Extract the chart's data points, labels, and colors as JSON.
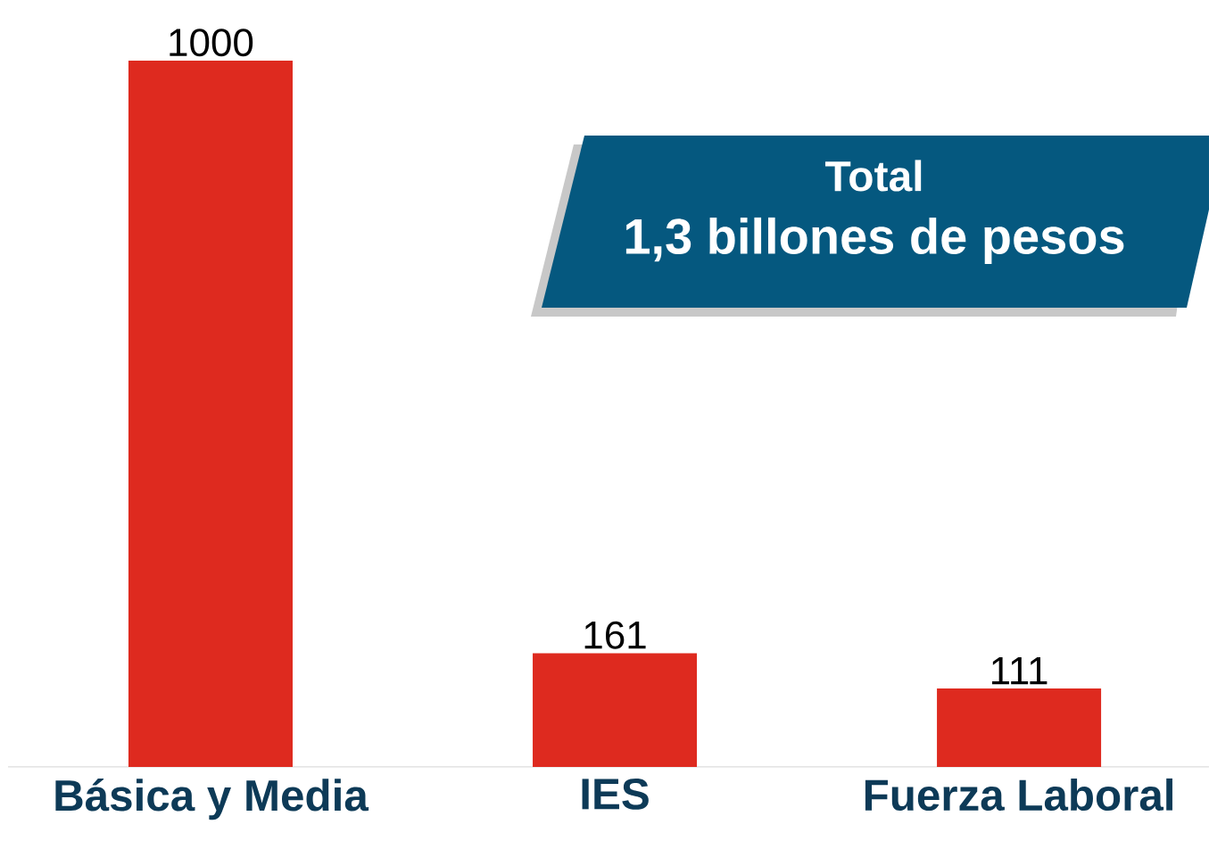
{
  "chart_data": {
    "type": "bar",
    "categories": [
      "Básica  y Media",
      "IES",
      "Fuerza Laboral"
    ],
    "values": [
      1000,
      161,
      111
    ],
    "color": "#de2a1f",
    "data_labels": true,
    "annotations": [
      "Total",
      "1,3 billones de pesos"
    ]
  }
}
